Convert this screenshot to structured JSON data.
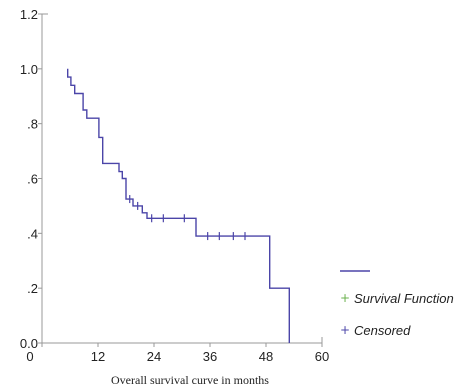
{
  "chart_data": {
    "type": "line",
    "title": "",
    "xlabel": "Overall survival curve in months",
    "ylabel": "",
    "xlim": [
      0,
      60
    ],
    "ylim": [
      0,
      1.2
    ],
    "x_ticks": [
      0,
      12,
      24,
      36,
      48,
      60
    ],
    "x_tick_labels": [
      "0",
      "12",
      "24",
      "36",
      "48",
      "60"
    ],
    "y_ticks": [
      0,
      0.2,
      0.4,
      0.6,
      0.8,
      1.0,
      1.2
    ],
    "y_tick_labels": [
      "0.0",
      ".2",
      ".4",
      ".6",
      ".8",
      "1.0",
      "1.2"
    ],
    "grid": false,
    "legend_position": "right",
    "legend": [
      {
        "label": "Survival Function",
        "symbol": "+",
        "color": "#6ab04c"
      },
      {
        "label": "Censored",
        "symbol": "+",
        "color": "#4b45a8"
      }
    ],
    "line_color": "#4b45a8",
    "series": [
      {
        "name": "Survival Function",
        "step_points": [
          [
            5.5,
            1.0
          ],
          [
            5.5,
            0.97
          ],
          [
            6.2,
            0.97
          ],
          [
            6.2,
            0.94
          ],
          [
            7,
            0.94
          ],
          [
            7,
            0.91
          ],
          [
            8.8,
            0.91
          ],
          [
            8.8,
            0.85
          ],
          [
            9.6,
            0.85
          ],
          [
            9.6,
            0.82
          ],
          [
            12.2,
            0.82
          ],
          [
            12.2,
            0.75
          ],
          [
            13,
            0.75
          ],
          [
            13,
            0.655
          ],
          [
            16.5,
            0.655
          ],
          [
            16.5,
            0.625
          ],
          [
            17.2,
            0.625
          ],
          [
            17.2,
            0.6
          ],
          [
            18,
            0.6
          ],
          [
            18,
            0.525
          ],
          [
            19.5,
            0.525
          ],
          [
            19.5,
            0.5
          ],
          [
            21.5,
            0.5
          ],
          [
            21.5,
            0.475
          ],
          [
            22.5,
            0.475
          ],
          [
            22.5,
            0.455
          ],
          [
            33,
            0.455
          ],
          [
            33,
            0.39
          ],
          [
            48.8,
            0.39
          ],
          [
            48.8,
            0.2
          ],
          [
            53,
            0.2
          ],
          [
            53,
            0.0
          ]
        ],
        "censored_points": [
          [
            18.8,
            0.525
          ],
          [
            20.5,
            0.5
          ],
          [
            23.5,
            0.455
          ],
          [
            26,
            0.455
          ],
          [
            30.5,
            0.455
          ],
          [
            35.5,
            0.39
          ],
          [
            38,
            0.39
          ],
          [
            41,
            0.39
          ],
          [
            43.5,
            0.39
          ]
        ]
      }
    ]
  }
}
